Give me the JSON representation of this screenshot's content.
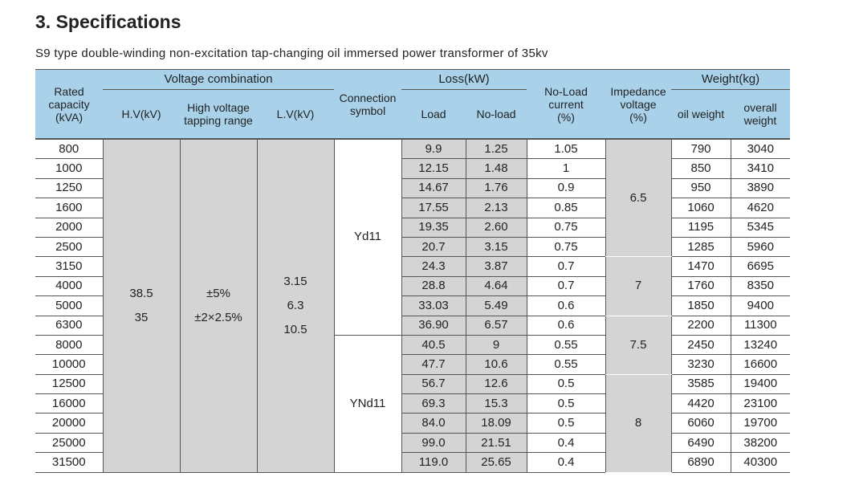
{
  "title": "3. Specifications",
  "subtitle": "S9 type double-winding non-excitation tap-changing oil immersed power transformer of 35kv",
  "table": {
    "header": {
      "rated_capacity": [
        "Rated",
        "capacity",
        "(kVA)"
      ],
      "voltage_combination": "Voltage combination",
      "hv": "H.V(kV)",
      "tapping_range": [
        "High voltage",
        "tapping range"
      ],
      "lv": "L.V(kV)",
      "connection_symbol": [
        "Connection",
        "symbol"
      ],
      "loss": "Loss(kW)",
      "load": "Load",
      "no_load": "No-load",
      "no_load_current": [
        "No-Load",
        "current",
        "(%)"
      ],
      "impedance_voltage": [
        "Impedance",
        "voltage",
        "(%)"
      ],
      "weight": "Weight(kg)",
      "oil_weight": "oil weight",
      "overall_weight": [
        "overall",
        "weight"
      ]
    },
    "hv": [
      "38.5",
      "35"
    ],
    "tapping_range": [
      "±5%",
      "±2×2.5%"
    ],
    "lv": [
      "3.15",
      "6.3",
      "10.5"
    ],
    "connection_symbols": [
      "Yd11",
      "YNd11"
    ],
    "impedance_voltages": [
      "6.5",
      "7",
      "7.5",
      "8"
    ],
    "rows": [
      [
        "800",
        "9.9",
        "1.25",
        "1.05",
        "790",
        "3040"
      ],
      [
        "1000",
        "12.15",
        "1.48",
        "1",
        "850",
        "3410"
      ],
      [
        "1250",
        "14.67",
        "1.76",
        "0.9",
        "950",
        "3890"
      ],
      [
        "1600",
        "17.55",
        "2.13",
        "0.85",
        "1060",
        "4620"
      ],
      [
        "2000",
        "19.35",
        "2.60",
        "0.75",
        "1195",
        "5345"
      ],
      [
        "2500",
        "20.7",
        "3.15",
        "0.75",
        "1285",
        "5960"
      ],
      [
        "3150",
        "24.3",
        "3.87",
        "0.7",
        "1470",
        "6695"
      ],
      [
        "4000",
        "28.8",
        "4.64",
        "0.7",
        "1760",
        "8350"
      ],
      [
        "5000",
        "33.03",
        "5.49",
        "0.6",
        "1850",
        "9400"
      ],
      [
        "6300",
        "36.90",
        "6.57",
        "0.6",
        "2200",
        "11300"
      ],
      [
        "8000",
        "40.5",
        "9",
        "0.55",
        "2450",
        "13240"
      ],
      [
        "10000",
        "47.7",
        "10.6",
        "0.55",
        "3230",
        "16600"
      ],
      [
        "12500",
        "56.7",
        "12.6",
        "0.5",
        "3585",
        "19400"
      ],
      [
        "16000",
        "69.3",
        "15.3",
        "0.5",
        "4420",
        "23100"
      ],
      [
        "20000",
        "84.0",
        "18.09",
        "0.5",
        "6060",
        "19700"
      ],
      [
        "25000",
        "99.0",
        "21.51",
        "0.4",
        "6490",
        "38200"
      ],
      [
        "31500",
        "119.0",
        "25.65",
        "0.4",
        "6890",
        "40300"
      ]
    ]
  }
}
